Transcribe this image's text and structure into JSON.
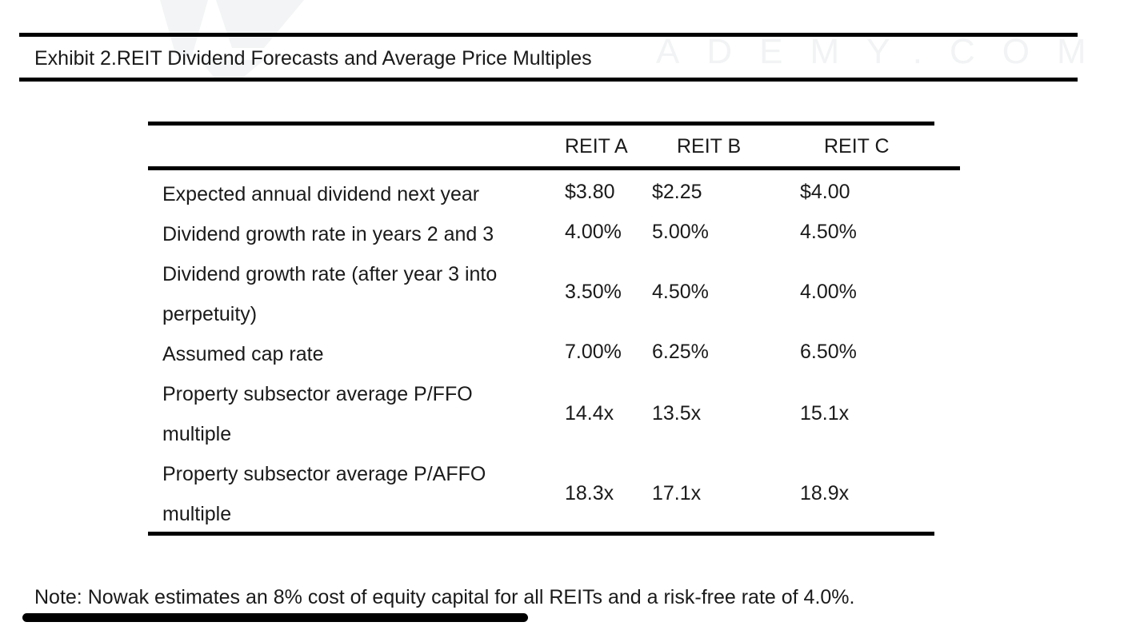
{
  "exhibit": {
    "title": "Exhibit 2.REIT Dividend Forecasts and Average Price Multiples",
    "watermark": "ADEMY.COM"
  },
  "table": {
    "columns": [
      "REIT A",
      "REIT B",
      "REIT C"
    ],
    "rows": [
      {
        "label": "Expected annual dividend next year",
        "values": [
          "$3.80",
          "$2.25",
          "$4.00"
        ]
      },
      {
        "label": "Dividend growth rate in years 2 and 3",
        "values": [
          "4.00%",
          "5.00%",
          "4.50%"
        ]
      },
      {
        "label": "Dividend growth rate (after year 3 into perpetuity)",
        "values": [
          "3.50%",
          "4.50%",
          "4.00%"
        ]
      },
      {
        "label": "Assumed cap rate",
        "values": [
          "7.00%",
          "6.25%",
          "6.50%"
        ]
      },
      {
        "label": "Property subsector average P/FFO multiple",
        "values": [
          "14.4x",
          "13.5x",
          "15.1x"
        ]
      },
      {
        "label": "Property subsector average P/AFFO multiple",
        "values": [
          "18.3x",
          "17.1x",
          "18.9x"
        ]
      }
    ]
  },
  "note": "Note: Nowak estimates an 8% cost of equity capital for all REITs and a risk-free rate of 4.0%."
}
